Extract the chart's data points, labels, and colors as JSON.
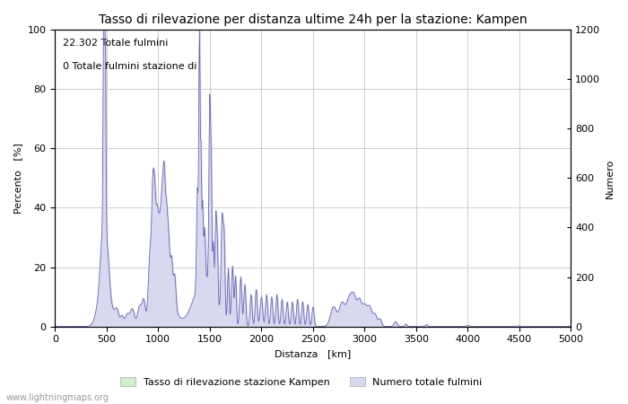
{
  "title": "Tasso di rilevazione per distanza ultime 24h per la stazione: Kampen",
  "xlabel": "Distanza   [km]",
  "ylabel_left": "Percento   [%]",
  "ylabel_right": "Numero",
  "annotation_line1": "22.302 Totale fulmini",
  "annotation_line2": "0 Totale fulmini stazione di",
  "watermark": "www.lightningmaps.org",
  "legend_green": "Tasso di rilevazione stazione Kampen",
  "legend_blue": "Numero totale fulmini",
  "xlim": [
    0,
    5000
  ],
  "ylim_left": [
    0,
    100
  ],
  "ylim_right": [
    0,
    1200
  ],
  "xticks": [
    0,
    500,
    1000,
    1500,
    2000,
    2500,
    3000,
    3500,
    4000,
    4500,
    5000
  ],
  "yticks_left": [
    0,
    20,
    40,
    60,
    80,
    100
  ],
  "yticks_right": [
    0,
    200,
    400,
    600,
    800,
    1000,
    1200
  ],
  "background_color": "#ffffff",
  "grid_color": "#cccccc",
  "line_color": "#6666bb",
  "fill_blue_color": "#d8d8ee",
  "fill_green_color": "#cceecc",
  "title_fontsize": 10,
  "axis_fontsize": 8,
  "tick_fontsize": 8
}
